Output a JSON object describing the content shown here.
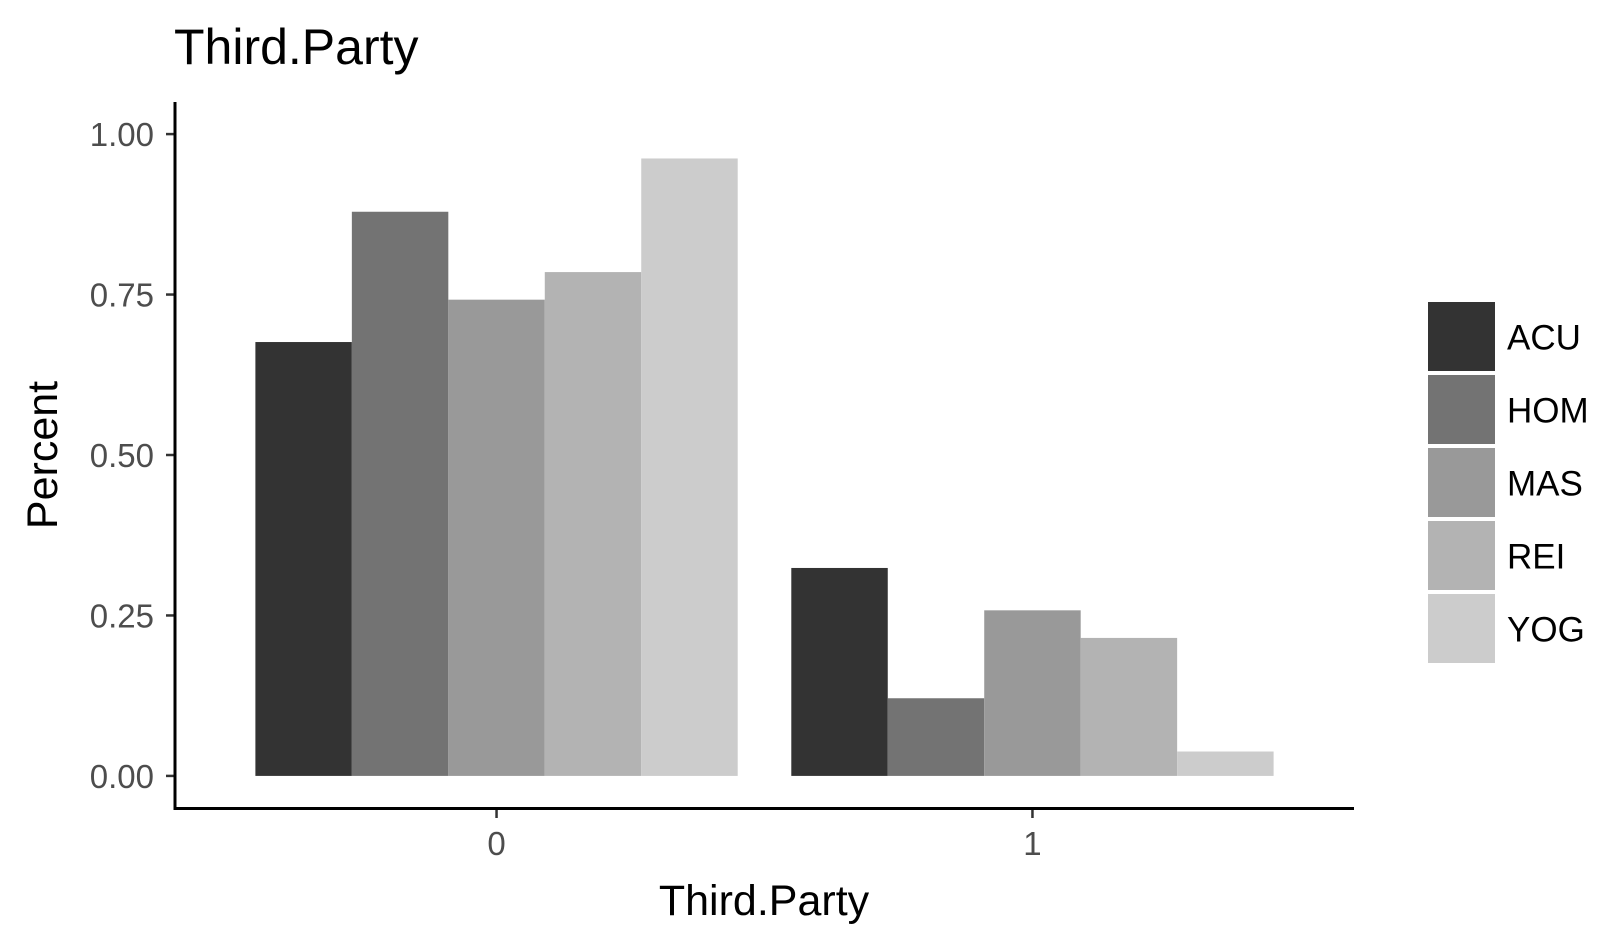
{
  "chart_data": {
    "type": "bar",
    "title": "Third.Party",
    "xlabel": "Third.Party",
    "ylabel": "Percent",
    "categories": [
      "0",
      "1"
    ],
    "series": [
      {
        "name": "ACU",
        "values": [
          0.676,
          0.324
        ],
        "color": "#333333"
      },
      {
        "name": "HOM",
        "values": [
          0.879,
          0.121
        ],
        "color": "#737373"
      },
      {
        "name": "MAS",
        "values": [
          0.742,
          0.258
        ],
        "color": "#999999"
      },
      {
        "name": "REI",
        "values": [
          0.785,
          0.215
        ],
        "color": "#b3b3b3"
      },
      {
        "name": "YOG",
        "values": [
          0.962,
          0.038
        ],
        "color": "#cccccc"
      }
    ],
    "yticks": [
      0,
      0.25,
      0.5,
      0.75,
      1
    ],
    "ytick_labels": [
      "0.00",
      "0.25",
      "0.50",
      "0.75",
      "1.00"
    ],
    "ylim": [
      -0.05,
      1.05
    ],
    "grid": false,
    "legend": "right",
    "stacking": "dodge"
  }
}
